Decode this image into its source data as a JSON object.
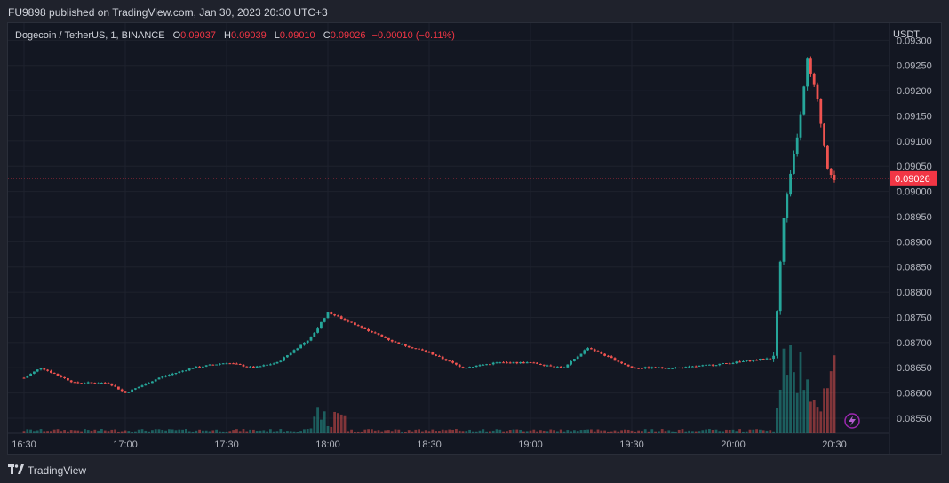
{
  "header": {
    "published_text": "FU9898 published on TradingView.com, Jan 30, 2023 20:30 UTC+3"
  },
  "legend": {
    "symbol": "Dogecoin / TetherUS, 1, BINANCE",
    "o_label": "O",
    "o_value": "0.09037",
    "h_label": "H",
    "h_value": "0.09039",
    "l_label": "L",
    "l_value": "0.09010",
    "c_label": "C",
    "c_value": "0.09026",
    "change": "−0.00010 (−0.11%)"
  },
  "price_axis": {
    "currency": "USDT",
    "last_price_label": "0.09026"
  },
  "footer": {
    "brand": "TradingView"
  },
  "colors": {
    "up": "#26a69a",
    "down": "#ef5350",
    "background": "#131722",
    "grid": "#1e222d",
    "last_price": "#f23645"
  },
  "chart_data": {
    "type": "candlestick",
    "title": "",
    "interval": "1",
    "ylim": [
      0.0852,
      0.0932
    ],
    "y_ticks": [
      "0.09300",
      "0.09250",
      "0.09200",
      "0.09150",
      "0.09100",
      "0.09050",
      "0.09000",
      "0.08950",
      "0.08900",
      "0.08850",
      "0.08800",
      "0.08750",
      "0.08700",
      "0.08650",
      "0.08600",
      "0.08550"
    ],
    "x_ticks": [
      "16:30",
      "17:00",
      "17:30",
      "18:00",
      "18:30",
      "19:00",
      "19:30",
      "20:00",
      "20:30"
    ],
    "x_start": "16:30",
    "last_price": 0.09026,
    "close_path": [
      {
        "t": "16:30",
        "p": 0.0863
      },
      {
        "t": "16:35",
        "p": 0.0865
      },
      {
        "t": "16:45",
        "p": 0.0862
      },
      {
        "t": "16:55",
        "p": 0.0862
      },
      {
        "t": "17:00",
        "p": 0.086
      },
      {
        "t": "17:10",
        "p": 0.0863
      },
      {
        "t": "17:20",
        "p": 0.0865
      },
      {
        "t": "17:30",
        "p": 0.0866
      },
      {
        "t": "17:38",
        "p": 0.0865
      },
      {
        "t": "17:45",
        "p": 0.0866
      },
      {
        "t": "17:55",
        "p": 0.0871
      },
      {
        "t": "18:00",
        "p": 0.0876
      },
      {
        "t": "18:10",
        "p": 0.0873
      },
      {
        "t": "18:20",
        "p": 0.087
      },
      {
        "t": "18:30",
        "p": 0.0868
      },
      {
        "t": "18:40",
        "p": 0.0865
      },
      {
        "t": "18:50",
        "p": 0.0866
      },
      {
        "t": "19:00",
        "p": 0.0866
      },
      {
        "t": "19:10",
        "p": 0.0865
      },
      {
        "t": "19:17",
        "p": 0.0869
      },
      {
        "t": "19:30",
        "p": 0.0865
      },
      {
        "t": "19:45",
        "p": 0.0865
      },
      {
        "t": "20:00",
        "p": 0.0866
      },
      {
        "t": "20:12",
        "p": 0.0867
      },
      {
        "t": "20:15",
        "p": 0.0895
      },
      {
        "t": "20:20",
        "p": 0.0915
      },
      {
        "t": "20:22",
        "p": 0.0926
      },
      {
        "t": "20:25",
        "p": 0.0918
      },
      {
        "t": "20:28",
        "p": 0.0905
      },
      {
        "t": "20:30",
        "p": 0.09026
      }
    ]
  }
}
